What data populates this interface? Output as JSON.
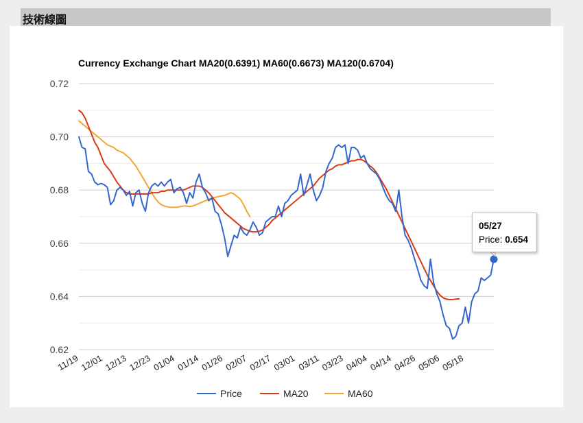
{
  "header": {
    "title": "技術線圖"
  },
  "chart_data": {
    "type": "line",
    "title": "Currency Exchange Chart MA20(0.6391) MA60(0.6673) MA120(0.6704)",
    "ylim": [
      0.62,
      0.72
    ],
    "y_ticks": [
      "0.72",
      "0.70",
      "0.68",
      "0.66",
      "0.64",
      "0.62"
    ],
    "x_tick_labels": [
      "11/19",
      "12/01",
      "12/13",
      "12/23",
      "01/04",
      "01/14",
      "01/26",
      "02/07",
      "02/17",
      "03/01",
      "03/11",
      "03/23",
      "04/04",
      "04/14",
      "04/26",
      "05/06",
      "05/18"
    ],
    "grid": true,
    "legend_position": "bottom",
    "series": [
      {
        "name": "Price",
        "color": "#3366cc",
        "values": [
          0.7,
          0.696,
          0.6955,
          0.687,
          0.686,
          0.683,
          0.682,
          0.6825,
          0.682,
          0.681,
          0.6745,
          0.676,
          0.68,
          0.681,
          0.68,
          0.678,
          0.6795,
          0.674,
          0.679,
          0.68,
          0.675,
          0.672,
          0.679,
          0.6815,
          0.6825,
          0.6815,
          0.683,
          0.6815,
          0.683,
          0.684,
          0.679,
          0.6805,
          0.681,
          0.679,
          0.675,
          0.679,
          0.677,
          0.683,
          0.686,
          0.681,
          0.679,
          0.676,
          0.677,
          0.672,
          0.671,
          0.667,
          0.662,
          0.655,
          0.659,
          0.663,
          0.662,
          0.666,
          0.664,
          0.663,
          0.665,
          0.668,
          0.666,
          0.663,
          0.664,
          0.668,
          0.669,
          0.67,
          0.67,
          0.674,
          0.67,
          0.675,
          0.676,
          0.678,
          0.679,
          0.68,
          0.686,
          0.678,
          0.682,
          0.686,
          0.68,
          0.676,
          0.678,
          0.681,
          0.687,
          0.69,
          0.692,
          0.696,
          0.697,
          0.696,
          0.697,
          0.69,
          0.696,
          0.696,
          0.695,
          0.692,
          0.693,
          0.69,
          0.688,
          0.687,
          0.686,
          0.684,
          0.681,
          0.678,
          0.676,
          0.675,
          0.672,
          0.68,
          0.67,
          0.663,
          0.661,
          0.658,
          0.654,
          0.65,
          0.646,
          0.644,
          0.643,
          0.654,
          0.645,
          0.641,
          0.638,
          0.633,
          0.629,
          0.628,
          0.624,
          0.625,
          0.629,
          0.63,
          0.636,
          0.63,
          0.638,
          0.641,
          0.642,
          0.647,
          0.646,
          0.647,
          0.648,
          0.654
        ]
      },
      {
        "name": "MA20",
        "color": "#dc3912",
        "values": [
          0.71,
          0.709,
          0.707,
          0.704,
          0.701,
          0.698,
          0.696,
          0.693,
          0.69,
          0.6885,
          0.687,
          0.685,
          0.683,
          0.6815,
          0.68,
          0.679,
          0.6785,
          0.6785,
          0.6785,
          0.6785,
          0.6785,
          0.6785,
          0.6785,
          0.679,
          0.679,
          0.679,
          0.6795,
          0.6795,
          0.68,
          0.68,
          0.68,
          0.68,
          0.68,
          0.68,
          0.6805,
          0.681,
          0.6815,
          0.6815,
          0.6815,
          0.681,
          0.68,
          0.679,
          0.6775,
          0.676,
          0.6745,
          0.673,
          0.6715,
          0.6705,
          0.6695,
          0.6685,
          0.6675,
          0.6665,
          0.6655,
          0.665,
          0.6645,
          0.6643,
          0.6643,
          0.6645,
          0.665,
          0.666,
          0.667,
          0.6685,
          0.6695,
          0.6705,
          0.6715,
          0.6725,
          0.6735,
          0.6745,
          0.6755,
          0.6765,
          0.6775,
          0.6785,
          0.6795,
          0.6805,
          0.6815,
          0.683,
          0.6845,
          0.6855,
          0.6865,
          0.6875,
          0.688,
          0.689,
          0.6895,
          0.6895,
          0.69,
          0.6905,
          0.691,
          0.691,
          0.6915,
          0.6915,
          0.691,
          0.69,
          0.689,
          0.688,
          0.6865,
          0.6845,
          0.6825,
          0.6805,
          0.678,
          0.6755,
          0.673,
          0.6705,
          0.668,
          0.6655,
          0.663,
          0.6605,
          0.658,
          0.6555,
          0.653,
          0.6505,
          0.648,
          0.646,
          0.644,
          0.642,
          0.6405,
          0.6395,
          0.639,
          0.6388,
          0.6388,
          0.639,
          0.6391
        ]
      },
      {
        "name": "MA60",
        "color": "#f4a433",
        "values": [
          0.706,
          0.705,
          0.704,
          0.703,
          0.702,
          0.701,
          0.7,
          0.699,
          0.698,
          0.697,
          0.6965,
          0.696,
          0.695,
          0.6945,
          0.694,
          0.693,
          0.692,
          0.6905,
          0.689,
          0.687,
          0.685,
          0.683,
          0.681,
          0.679,
          0.677,
          0.6755,
          0.6745,
          0.674,
          0.6737,
          0.6735,
          0.6735,
          0.6735,
          0.6738,
          0.674,
          0.674,
          0.6738,
          0.674,
          0.6745,
          0.675,
          0.6755,
          0.676,
          0.6765,
          0.677,
          0.6773,
          0.6775,
          0.6778,
          0.678,
          0.6785,
          0.679,
          0.6785,
          0.6775,
          0.6765,
          0.6745,
          0.672,
          0.67
        ]
      }
    ],
    "tooltip": {
      "date": "05/27",
      "price_label": "Price:",
      "price_value": "0.654"
    }
  }
}
